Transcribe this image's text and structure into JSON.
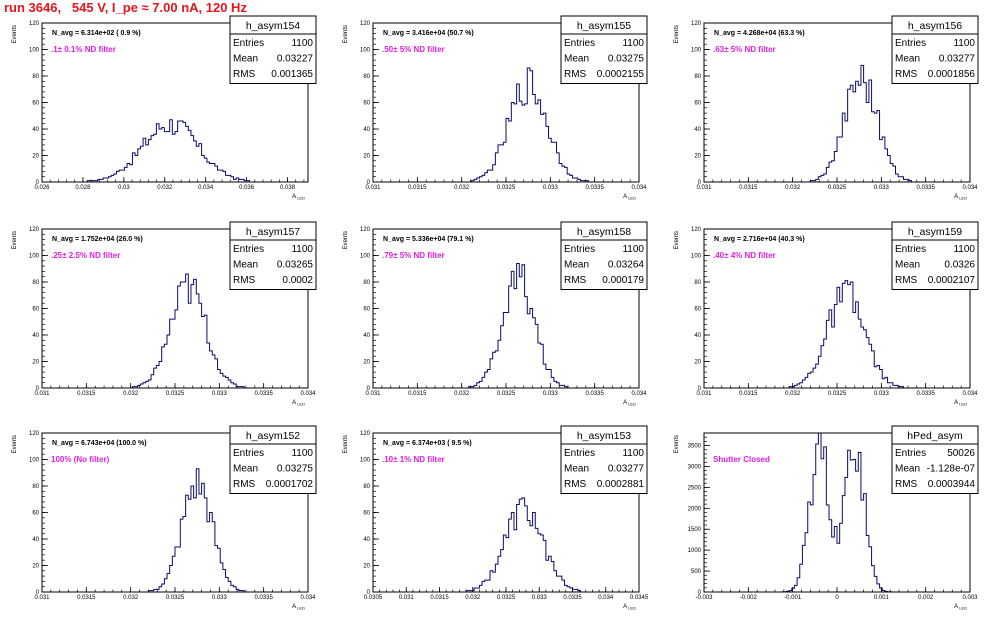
{
  "page": {
    "title": "run 3646,   545 V, I_pe ≈ 7.00 nA, 120 Hz"
  },
  "chart_data": [
    {
      "type": "histogram",
      "name": "h_asym154",
      "title": "",
      "ylabel": "Events",
      "xlabel": "A",
      "xlim": [
        0.026,
        0.039
      ],
      "ylim": [
        0,
        120
      ],
      "xticks": [
        0.026,
        0.028,
        0.03,
        0.032,
        0.034,
        0.036,
        0.038
      ],
      "yticks": [
        0,
        20,
        40,
        60,
        80,
        100,
        120
      ],
      "stats": {
        "label": "h_asym154",
        "entries": "1100",
        "mean": "0.03227",
        "rms": "0.001365"
      },
      "annotation_navg": "N_avg = 6.314e+02 ( 0.9 %)",
      "annotation_filter": ".1± 0.1% ND filter",
      "mu": 0.03227,
      "sigma": 0.001365,
      "peak": 44,
      "entries": 1100,
      "nbins": 100
    },
    {
      "type": "histogram",
      "name": "h_asym155",
      "title": "",
      "ylabel": "Events",
      "xlabel": "A",
      "xlim": [
        0.031,
        0.034
      ],
      "ylim": [
        0,
        120
      ],
      "xticks": [
        0.031,
        0.0315,
        0.032,
        0.0325,
        0.033,
        0.0335,
        0.034
      ],
      "yticks": [
        0,
        20,
        40,
        60,
        80,
        100,
        120
      ],
      "stats": {
        "label": "h_asym155",
        "entries": "1100",
        "mean": "0.03275",
        "rms": "0.0002155"
      },
      "annotation_navg": "N_avg = 3.416e+04 (50.7 %)",
      "annotation_filter": ".50± 5% ND filter",
      "mu": 0.03275,
      "sigma": 0.0002155,
      "peak": 74,
      "entries": 1100,
      "nbins": 100
    },
    {
      "type": "histogram",
      "name": "h_asym156",
      "title": "",
      "ylabel": "Events",
      "xlabel": "A",
      "xlim": [
        0.031,
        0.034
      ],
      "ylim": [
        0,
        120
      ],
      "xticks": [
        0.031,
        0.0315,
        0.032,
        0.0325,
        0.033,
        0.0335,
        0.034
      ],
      "yticks": [
        0,
        20,
        40,
        60,
        80,
        100,
        120
      ],
      "stats": {
        "label": "h_asym156",
        "entries": "1100",
        "mean": "0.03277",
        "rms": "0.0001856"
      },
      "annotation_navg": "N_avg = 4.268e+04 (63.3 %)",
      "annotation_filter": ".63± 5% ND filter",
      "mu": 0.03277,
      "sigma": 0.0001856,
      "peak": 80,
      "entries": 1100,
      "nbins": 100
    },
    {
      "type": "histogram",
      "name": "h_asym157",
      "title": "",
      "ylabel": "Events",
      "xlabel": "A",
      "xlim": [
        0.031,
        0.034
      ],
      "ylim": [
        0,
        120
      ],
      "xticks": [
        0.031,
        0.0315,
        0.032,
        0.0325,
        0.033,
        0.0335,
        0.034
      ],
      "yticks": [
        0,
        20,
        40,
        60,
        80,
        100,
        120
      ],
      "stats": {
        "label": "h_asym157",
        "entries": "1100",
        "mean": "0.03265",
        "rms": "0.0002"
      },
      "annotation_navg": "N_avg = 1.752e+04 (26.0 %)",
      "annotation_filter": ".25± 2.5% ND filter",
      "mu": 0.03265,
      "sigma": 0.0002,
      "peak": 76,
      "entries": 1100,
      "nbins": 100
    },
    {
      "type": "histogram",
      "name": "h_asym158",
      "title": "",
      "ylabel": "Events",
      "xlabel": "A",
      "xlim": [
        0.031,
        0.034
      ],
      "ylim": [
        0,
        120
      ],
      "xticks": [
        0.031,
        0.0315,
        0.032,
        0.0325,
        0.033,
        0.0335,
        0.034
      ],
      "yticks": [
        0,
        20,
        40,
        60,
        80,
        100,
        120
      ],
      "stats": {
        "label": "h_asym158",
        "entries": "1100",
        "mean": "0.03264",
        "rms": "0.000179"
      },
      "annotation_navg": "N_avg = 5.336e+04 (79.1 %)",
      "annotation_filter": ".79± 5% ND filter",
      "mu": 0.03264,
      "sigma": 0.000179,
      "peak": 83,
      "entries": 1100,
      "nbins": 100
    },
    {
      "type": "histogram",
      "name": "h_asym159",
      "title": "",
      "ylabel": "Events",
      "xlabel": "A",
      "xlim": [
        0.031,
        0.034
      ],
      "ylim": [
        0,
        120
      ],
      "xticks": [
        0.031,
        0.0315,
        0.032,
        0.0325,
        0.033,
        0.0335,
        0.034
      ],
      "yticks": [
        0,
        20,
        40,
        60,
        80,
        100,
        120
      ],
      "stats": {
        "label": "h_asym159",
        "entries": "1100",
        "mean": "0.0326",
        "rms": "0.0002107"
      },
      "annotation_navg": "N_avg = 2.716e+04 (40.3 %)",
      "annotation_filter": ".40± 4% ND filter",
      "mu": 0.0326,
      "sigma": 0.0002107,
      "peak": 70,
      "entries": 1100,
      "nbins": 100
    },
    {
      "type": "histogram",
      "name": "h_asym152",
      "title": "",
      "ylabel": "Events",
      "xlabel": "A",
      "xlim": [
        0.031,
        0.034
      ],
      "ylim": [
        0,
        120
      ],
      "xticks": [
        0.031,
        0.0315,
        0.032,
        0.0325,
        0.033,
        0.0335,
        0.034
      ],
      "yticks": [
        0,
        20,
        40,
        60,
        80,
        100,
        120
      ],
      "stats": {
        "label": "h_asym152",
        "entries": "1100",
        "mean": "0.03275",
        "rms": "0.0001702"
      },
      "annotation_navg": "N_avg = 6.743e+04 (100.0 %)",
      "annotation_filter": "100% (No filter)",
      "mu": 0.03275,
      "sigma": 0.0001702,
      "peak": 82,
      "entries": 1100,
      "nbins": 100
    },
    {
      "type": "histogram",
      "name": "h_asym153",
      "title": "",
      "ylabel": "Events",
      "xlabel": "A",
      "xlim": [
        0.0305,
        0.0345
      ],
      "ylim": [
        0,
        120
      ],
      "xticks": [
        0.0305,
        0.031,
        0.0315,
        0.032,
        0.0325,
        0.033,
        0.0335,
        0.034,
        0.0345
      ],
      "yticks": [
        0,
        20,
        40,
        60,
        80,
        100,
        120
      ],
      "stats": {
        "label": "h_asym153",
        "entries": "1100",
        "mean": "0.03277",
        "rms": "0.0002881"
      },
      "annotation_navg": "N_avg = 6.374e+03 ( 9.5 %)",
      "annotation_filter": ".10± 1% ND filter",
      "mu": 0.03277,
      "sigma": 0.0002881,
      "peak": 62,
      "entries": 1100,
      "nbins": 100
    },
    {
      "type": "histogram",
      "name": "hPed_asym",
      "title": "",
      "ylabel": "Events",
      "xlabel": "A",
      "xlim": [
        -0.003,
        0.003
      ],
      "ylim": [
        0,
        3800
      ],
      "xticks": [
        -0.003,
        -0.002,
        -0.001,
        0,
        0.001,
        0.002,
        0.003
      ],
      "yticks": [
        0,
        500,
        1000,
        1500,
        2000,
        2500,
        3000,
        3500
      ],
      "stats": {
        "label": "hPed_asym",
        "entries": "50026",
        "mean": "-1.128e-07",
        "rms": "0.0003944"
      },
      "annotation_navg": "",
      "annotation_filter": "Shutter Closed",
      "mu": -1.128e-07,
      "sigma": 0.0003944,
      "peak": 3620,
      "entries": 50026,
      "nbins": 100,
      "shape": "bimodal",
      "peaks": [
        -0.0004,
        0.0004
      ],
      "peak_values": [
        3500,
        3620
      ]
    }
  ]
}
